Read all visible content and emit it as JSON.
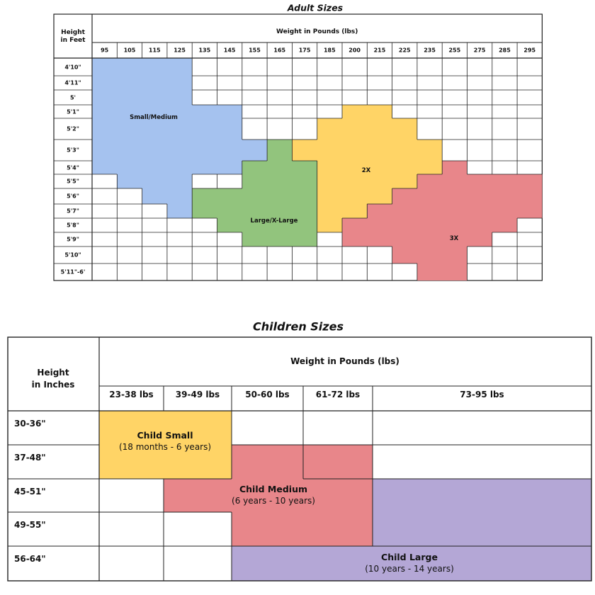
{
  "adult": {
    "title": "Adult Sizes",
    "row_header": "Height\nin Feet",
    "column_header": "Weight in Pounds (lbs)",
    "weights": [
      "95",
      "105",
      "115",
      "125",
      "135",
      "145",
      "155",
      "165",
      "175",
      "185",
      "200",
      "215",
      "225",
      "235",
      "255",
      "275",
      "285",
      "295"
    ],
    "heights": [
      "4'10\"",
      "4'11\"",
      "5'",
      "5'1\"",
      "5'2\"",
      "5'3\"",
      "5'4\"",
      "5'5\"",
      "5'6\"",
      "5'7\"",
      "5'8\"",
      "5'9\"",
      "5'10\"",
      "5'11\"-6'"
    ],
    "zones": [
      {
        "name": "Small/Medium",
        "color": "#a5c2ef"
      },
      {
        "name": "Large/X-Large",
        "color": "#92c47d"
      },
      {
        "name": "2X",
        "color": "#ffd466"
      },
      {
        "name": "3X",
        "color": "#e8868a"
      }
    ]
  },
  "children": {
    "title": "Children Sizes",
    "row_header": "Height\nin Inches",
    "column_header": "Weight in Pounds (lbs)",
    "weights": [
      "23-38 lbs",
      "39-49 lbs",
      "50-60 lbs",
      "61-72 lbs",
      "73-95 lbs"
    ],
    "heights": [
      "30-36\"",
      "37-48\"",
      "45-51\"",
      "49-55\"",
      "56-64\""
    ],
    "zones": [
      {
        "name": "Child Small",
        "ages": "(18 months - 6 years)",
        "color": "#ffd466"
      },
      {
        "name": "Child Medium",
        "ages": "(6 years - 10 years)",
        "color": "#e8868a"
      },
      {
        "name": "Child Large",
        "ages": "(10 years - 14 years)",
        "color": "#b4a7d6"
      }
    ]
  }
}
